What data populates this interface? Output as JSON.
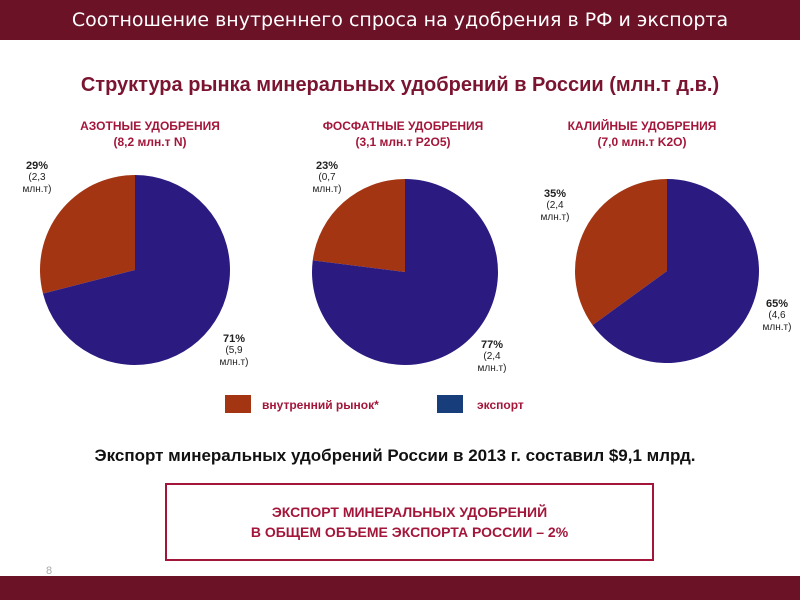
{
  "header": {
    "title": "Соотношение внутреннего спроса на удобрения в РФ и экспорта"
  },
  "main_title": "Структура рынка минеральных удобрений в России (млн.т д.в.)",
  "colors": {
    "domestic": "#a33513",
    "export": "#2b1a80",
    "accent": "#a3163a",
    "bar": "#6b1227"
  },
  "chart_data": [
    {
      "type": "pie",
      "title": "АЗОТНЫЕ УДОБРЕНИЯ",
      "subtitle": "(8,2 млн.т N)",
      "slices": [
        {
          "name": "внутренний рынок*",
          "value": 29,
          "pct_label": "29%",
          "amount_label": "(2,3 млн.т)"
        },
        {
          "name": "экспорт",
          "value": 71,
          "pct_label": "71%",
          "amount_label": "(5,9 млн.т)"
        }
      ]
    },
    {
      "type": "pie",
      "title": "ФОСФАТНЫЕ УДОБРЕНИЯ",
      "subtitle": "(3,1 млн.т P2O5)",
      "slices": [
        {
          "name": "внутренний рынок*",
          "value": 23,
          "pct_label": "23%",
          "amount_label": "(0,7 млн.т)"
        },
        {
          "name": "экспорт",
          "value": 77,
          "pct_label": "77%",
          "amount_label": "(2,4 млн.т)"
        }
      ]
    },
    {
      "type": "pie",
      "title": "КАЛИЙНЫЕ УДОБРЕНИЯ",
      "subtitle": "(7,0 млн.т K2O)",
      "slices": [
        {
          "name": "внутренний рынок*",
          "value": 35,
          "pct_label": "35%",
          "amount_label": "(2,4 млн.т)"
        },
        {
          "name": "экспорт",
          "value": 65,
          "pct_label": "65%",
          "amount_label": "(4,6 млн.т)"
        }
      ]
    }
  ],
  "legend": {
    "domestic": "внутренний рынок*",
    "export": "экспорт"
  },
  "export_statement": "Экспорт минеральных удобрений России в 2013 г. составил $9,1 млрд.",
  "info_box": {
    "line1": "ЭКСПОРТ МИНЕРАЛЬНЫХ УДОБРЕНИЙ",
    "line2": "В ОБЩЕМ ОБЪЕМЕ  ЭКСПОРТА РОССИИ – 2%"
  },
  "page_number": "8"
}
